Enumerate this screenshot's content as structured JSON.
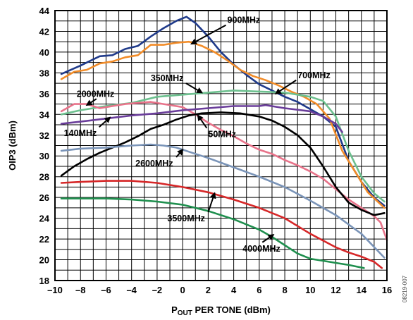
{
  "chart_data": {
    "type": "line",
    "title": "",
    "xlabel": {
      "main": "P",
      "sub": "OUT",
      "rest": " PER TONE (dBm)"
    },
    "ylabel": "OIP3 (dBm)",
    "xlim": [
      -10,
      16
    ],
    "ylim": [
      18,
      44
    ],
    "xticks": [
      "–10",
      "–8",
      "–6",
      "–4",
      "–2",
      "0",
      "2",
      "4",
      "6",
      "8",
      "10",
      "12",
      "14",
      "16"
    ],
    "yticks": [
      "18",
      "20",
      "22",
      "24",
      "26",
      "28",
      "30",
      "32",
      "34",
      "36",
      "38",
      "40",
      "42",
      "44"
    ],
    "grid": true,
    "figure_id": "08219-007",
    "series": [
      {
        "name": "900MHz",
        "color": "#1f3a8a",
        "points": [
          [
            -9.5,
            37.9
          ],
          [
            -8,
            38.7
          ],
          [
            -6.5,
            39.6
          ],
          [
            -5.5,
            39.7
          ],
          [
            -4.5,
            40.3
          ],
          [
            -3.5,
            40.6
          ],
          [
            -2.5,
            41.5
          ],
          [
            -1.5,
            42.3
          ],
          [
            -0.5,
            43.0
          ],
          [
            0.3,
            43.4
          ],
          [
            1,
            42.8
          ],
          [
            2,
            41.5
          ],
          [
            3,
            40.0
          ],
          [
            4,
            38.8
          ],
          [
            5,
            37.8
          ],
          [
            6,
            36.9
          ],
          [
            7,
            36.3
          ],
          [
            8,
            35.7
          ],
          [
            9,
            35.2
          ],
          [
            10,
            34.5
          ],
          [
            11,
            33.8
          ],
          [
            12,
            32.8
          ],
          [
            13,
            29.5
          ],
          [
            14,
            27.5
          ],
          [
            15,
            26.0
          ],
          [
            15.8,
            25.2
          ]
        ]
      },
      {
        "name": "700MHz",
        "color": "#f28c28",
        "points": [
          [
            -9.5,
            37.4
          ],
          [
            -8.5,
            38.1
          ],
          [
            -7.5,
            38.3
          ],
          [
            -6.5,
            38.9
          ],
          [
            -5.5,
            39.1
          ],
          [
            -4.5,
            39.5
          ],
          [
            -3.5,
            39.7
          ],
          [
            -2.5,
            40.7
          ],
          [
            -1.5,
            40.7
          ],
          [
            -0.5,
            40.9
          ],
          [
            0.5,
            41.0
          ],
          [
            1.5,
            40.6
          ],
          [
            2.5,
            40.0
          ],
          [
            3.5,
            39.2
          ],
          [
            4.5,
            38.3
          ],
          [
            5.5,
            37.7
          ],
          [
            6.5,
            37.3
          ],
          [
            7.5,
            36.8
          ],
          [
            8.5,
            36.2
          ],
          [
            9.5,
            35.7
          ],
          [
            10.5,
            35.0
          ],
          [
            11.5,
            33.6
          ],
          [
            12.5,
            30.5
          ],
          [
            13.5,
            28.5
          ],
          [
            14.5,
            26.5
          ],
          [
            15.8,
            25.0
          ]
        ]
      },
      {
        "name": "350MHz",
        "color": "#6cc08e",
        "points": [
          [
            -9.5,
            34.0
          ],
          [
            -8,
            34.4
          ],
          [
            -6,
            34.8
          ],
          [
            -4,
            35.1
          ],
          [
            -2,
            35.7
          ],
          [
            0,
            35.9
          ],
          [
            2,
            36.1
          ],
          [
            4,
            36.3
          ],
          [
            6,
            36.2
          ],
          [
            8,
            36.1
          ],
          [
            10,
            35.7
          ],
          [
            11,
            35.3
          ],
          [
            12,
            33.8
          ],
          [
            13,
            30.5
          ],
          [
            14,
            28.0
          ],
          [
            15,
            26.4
          ],
          [
            15.8,
            25.6
          ]
        ]
      },
      {
        "name": "2000MHz",
        "color": "#e8738a",
        "points": [
          [
            -9.5,
            34.3
          ],
          [
            -8.5,
            35.0
          ],
          [
            -7.5,
            35.0
          ],
          [
            -6.5,
            34.6
          ],
          [
            -5.5,
            34.8
          ],
          [
            -4.5,
            35.0
          ],
          [
            -3.5,
            35.1
          ],
          [
            -2.5,
            35.2
          ],
          [
            -1.5,
            35.0
          ],
          [
            0,
            34.7
          ],
          [
            1,
            34.0
          ],
          [
            2,
            33.2
          ],
          [
            3,
            32.5
          ],
          [
            4,
            31.9
          ],
          [
            5,
            31.2
          ],
          [
            6,
            30.6
          ],
          [
            7,
            30.2
          ],
          [
            8,
            29.6
          ],
          [
            9,
            29.1
          ],
          [
            10,
            28.5
          ],
          [
            11,
            27.8
          ],
          [
            12,
            26.8
          ],
          [
            13,
            25.8
          ],
          [
            14,
            25.0
          ],
          [
            15,
            24.2
          ],
          [
            15.5,
            23.6
          ],
          [
            16,
            21.9
          ]
        ]
      },
      {
        "name": "140MHz",
        "color": "#6a3d9a",
        "points": [
          [
            -9.5,
            33.1
          ],
          [
            -8,
            33.3
          ],
          [
            -6,
            33.6
          ],
          [
            -4,
            33.9
          ],
          [
            -2,
            34.1
          ],
          [
            0,
            34.4
          ],
          [
            2,
            34.6
          ],
          [
            4,
            34.8
          ],
          [
            6,
            34.8
          ],
          [
            6.5,
            34.9
          ],
          [
            8,
            34.6
          ],
          [
            10,
            34.3
          ],
          [
            11,
            33.8
          ],
          [
            12,
            33.1
          ],
          [
            12.5,
            32.3
          ]
        ]
      },
      {
        "name": "50MHz",
        "color": "#000000",
        "points": [
          [
            -9.5,
            28.1
          ],
          [
            -8.5,
            29.0
          ],
          [
            -7.5,
            29.7
          ],
          [
            -6.5,
            30.3
          ],
          [
            -5.5,
            30.8
          ],
          [
            -4.5,
            31.3
          ],
          [
            -3.5,
            31.9
          ],
          [
            -2.5,
            32.6
          ],
          [
            -1.5,
            33.0
          ],
          [
            -0.5,
            33.5
          ],
          [
            0.5,
            33.9
          ],
          [
            1.5,
            34.1
          ],
          [
            3,
            34.2
          ],
          [
            4.5,
            34.1
          ],
          [
            6,
            33.8
          ],
          [
            7,
            33.4
          ],
          [
            8,
            32.8
          ],
          [
            9,
            32.0
          ],
          [
            10,
            30.8
          ],
          [
            11,
            29.0
          ],
          [
            12,
            27.0
          ],
          [
            13,
            25.5
          ],
          [
            14,
            24.8
          ],
          [
            15,
            24.3
          ],
          [
            15.8,
            24.5
          ]
        ]
      },
      {
        "name": "2600MHz",
        "color": "#7a94b8",
        "points": [
          [
            -9.5,
            30.5
          ],
          [
            -8,
            30.7
          ],
          [
            -6,
            30.8
          ],
          [
            -4,
            31.0
          ],
          [
            -2.5,
            31.1
          ],
          [
            -1.5,
            31.0
          ],
          [
            -0.5,
            30.8
          ],
          [
            0.5,
            30.4
          ],
          [
            2,
            29.8
          ],
          [
            4,
            28.9
          ],
          [
            6,
            28.0
          ],
          [
            8,
            27.0
          ],
          [
            10,
            25.7
          ],
          [
            12,
            24.3
          ],
          [
            14,
            22.5
          ],
          [
            15.8,
            20.2
          ]
        ]
      },
      {
        "name": "3500MHz",
        "color": "#d62728",
        "points": [
          [
            -9.5,
            27.4
          ],
          [
            -8,
            27.5
          ],
          [
            -6,
            27.6
          ],
          [
            -4,
            27.6
          ],
          [
            -2,
            27.4
          ],
          [
            0,
            27.0
          ],
          [
            2,
            26.5
          ],
          [
            4,
            25.8
          ],
          [
            6,
            25.0
          ],
          [
            8,
            24.0
          ],
          [
            10,
            22.5
          ],
          [
            12,
            21.2
          ],
          [
            13,
            20.7
          ],
          [
            14,
            20.3
          ],
          [
            15,
            19.8
          ],
          [
            15.6,
            19.2
          ]
        ]
      },
      {
        "name": "4000MHz",
        "color": "#1f8f4e",
        "points": [
          [
            -9.5,
            25.9
          ],
          [
            -8,
            25.9
          ],
          [
            -6,
            25.9
          ],
          [
            -4,
            25.8
          ],
          [
            -2,
            25.6
          ],
          [
            0,
            25.3
          ],
          [
            2,
            24.7
          ],
          [
            4,
            23.9
          ],
          [
            6,
            22.9
          ],
          [
            7,
            22.2
          ],
          [
            8,
            21.4
          ],
          [
            9,
            20.6
          ],
          [
            10,
            20.1
          ],
          [
            11,
            19.9
          ],
          [
            12,
            19.7
          ],
          [
            13,
            19.5
          ],
          [
            14.2,
            19.2
          ]
        ]
      }
    ],
    "annotations": [
      {
        "text": "900MHz",
        "x": 3.5,
        "y": 42.8,
        "ax": 0.7,
        "ay": 40.8
      },
      {
        "text": "700MHz",
        "x": 9.0,
        "y": 37.5,
        "ax": 7.3,
        "ay": 36.0
      },
      {
        "text": "350MHz",
        "x": -2.5,
        "y": 37.2,
        "ax": 1.5,
        "ay": 36.1
      },
      {
        "text": "2000MHz",
        "x": -8.3,
        "y": 35.7,
        "ax": -7.5,
        "ay": 34.9
      },
      {
        "text": "140MHz",
        "x": -9.3,
        "y": 31.9,
        "ax": -5.7,
        "ay": 33.7
      },
      {
        "text": "50MHz",
        "x": 2.0,
        "y": 31.8,
        "ax": 1.2,
        "ay": 33.9
      },
      {
        "text": "2600MHz",
        "x": -3.7,
        "y": 29.0,
        "ax": 0.0,
        "ay": 30.6
      },
      {
        "text": "3500MHz",
        "x": -1.2,
        "y": 23.7,
        "ax": 2.5,
        "ay": 26.4
      },
      {
        "text": "4000MHz",
        "x": 4.7,
        "y": 20.8,
        "ax": 7.1,
        "ay": 22.4
      }
    ]
  }
}
